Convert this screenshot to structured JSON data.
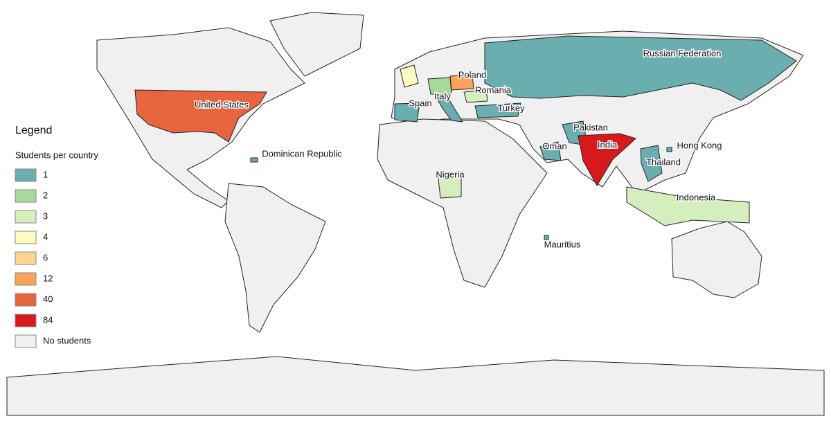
{
  "legend": {
    "title": "Legend",
    "subtitle": "Students per country",
    "items": [
      {
        "value": 1,
        "color": "#6aaeb0"
      },
      {
        "value": 2,
        "color": "#a6d99a"
      },
      {
        "value": 3,
        "color": "#d4eebd"
      },
      {
        "value": 4,
        "color": "#fefcc0"
      },
      {
        "value": 6,
        "color": "#fdd58f"
      },
      {
        "value": 12,
        "color": "#fba457"
      },
      {
        "value": 40,
        "color": "#e8643c"
      },
      {
        "value": 84,
        "color": "#d7191c"
      },
      {
        "label": "No students",
        "color": "#f0f0f0"
      }
    ]
  },
  "countries": [
    {
      "label": "Russian Federation",
      "value": 1
    },
    {
      "label": "Poland",
      "value": 12
    },
    {
      "label": "Romania",
      "value": 3
    },
    {
      "label": "Italy",
      "value": 1
    },
    {
      "label": "Spain",
      "value": 1
    },
    {
      "label": "Turkey",
      "value": 1
    },
    {
      "label": "United States",
      "value": 40
    },
    {
      "label": "Pakistan",
      "value": 1
    },
    {
      "label": "Oman",
      "value": 1
    },
    {
      "label": "India",
      "value": 84
    },
    {
      "label": "Hong Kong",
      "value": 1
    },
    {
      "label": "Thailand",
      "value": 1
    },
    {
      "label": "Indonesia",
      "value": 3
    },
    {
      "label": "Nigeria",
      "value": 3
    },
    {
      "label": "Mauritius",
      "value": 1
    },
    {
      "label": "Dominican Republic",
      "value": 1
    },
    {
      "label": null,
      "value": 4
    },
    {
      "label": null,
      "value": 2
    }
  ]
}
